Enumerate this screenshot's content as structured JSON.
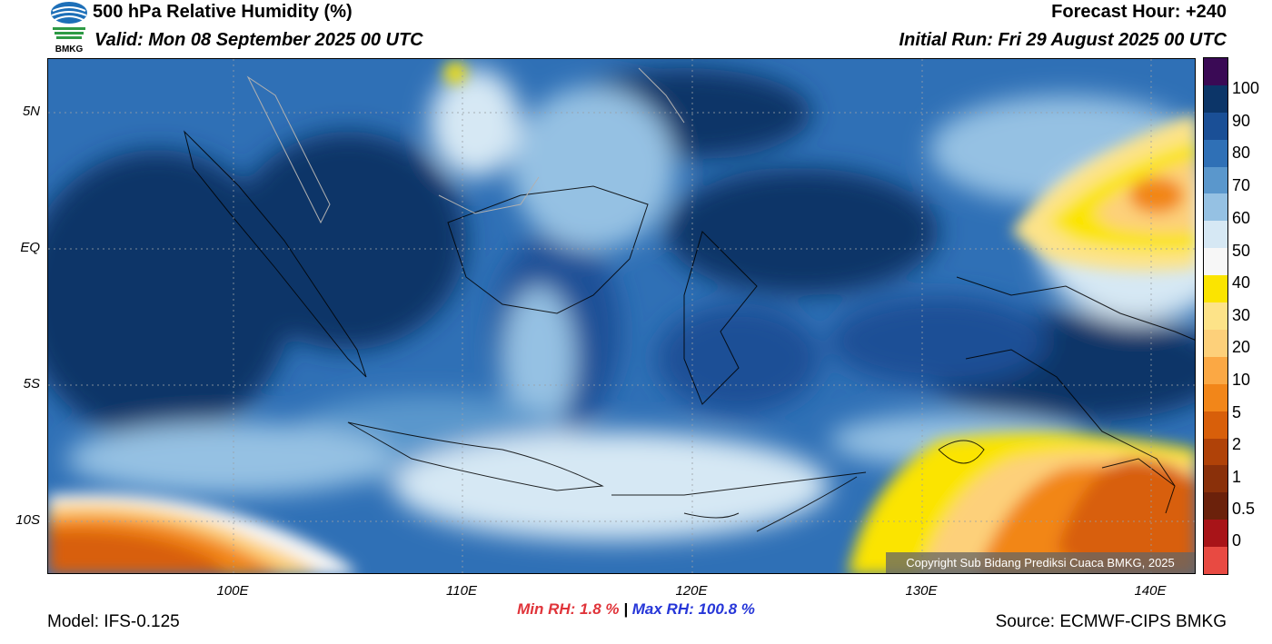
{
  "header": {
    "title": "500 hPa Relative Humidity (%)",
    "valid": "Valid: Mon 08 September 2025 00 UTC",
    "forecast_hour": "Forecast Hour: +240",
    "initial_run": "Initial Run: Fri 29 August 2025 00 UTC",
    "logo_text": "BMKG"
  },
  "axes": {
    "lat_labels": [
      "5N",
      "EQ",
      "5S",
      "10S"
    ],
    "lon_labels": [
      "100E",
      "110E",
      "120E",
      "130E",
      "140E"
    ]
  },
  "stats": {
    "min_label": "Min RH:   1.8 %",
    "separator": "|",
    "max_label": "Max RH: 100.8 %"
  },
  "footer": {
    "model": "Model: IFS-0.125",
    "source": "Source: ECMWF-CIPS BMKG",
    "copyright": "Copyright Sub Bidang Prediksi Cuaca BMKG, 2025"
  },
  "colorbar": {
    "labels": [
      "100",
      "90",
      "80",
      "70",
      "60",
      "50",
      "40",
      "30",
      "20",
      "10",
      "5",
      "2",
      "1",
      "0.5",
      "0"
    ],
    "colors": [
      "#3a0a55",
      "#0c3568",
      "#1a4f96",
      "#2f70b6",
      "#5a97cc",
      "#95c1e3",
      "#d6e8f4",
      "#f7f7f7",
      "#fbe400",
      "#fde388",
      "#fdd07a",
      "#fba844",
      "#f28619",
      "#d85f0a",
      "#b04208",
      "#8a300a",
      "#6b210b",
      "#a81418",
      "#e84a42"
    ]
  }
}
